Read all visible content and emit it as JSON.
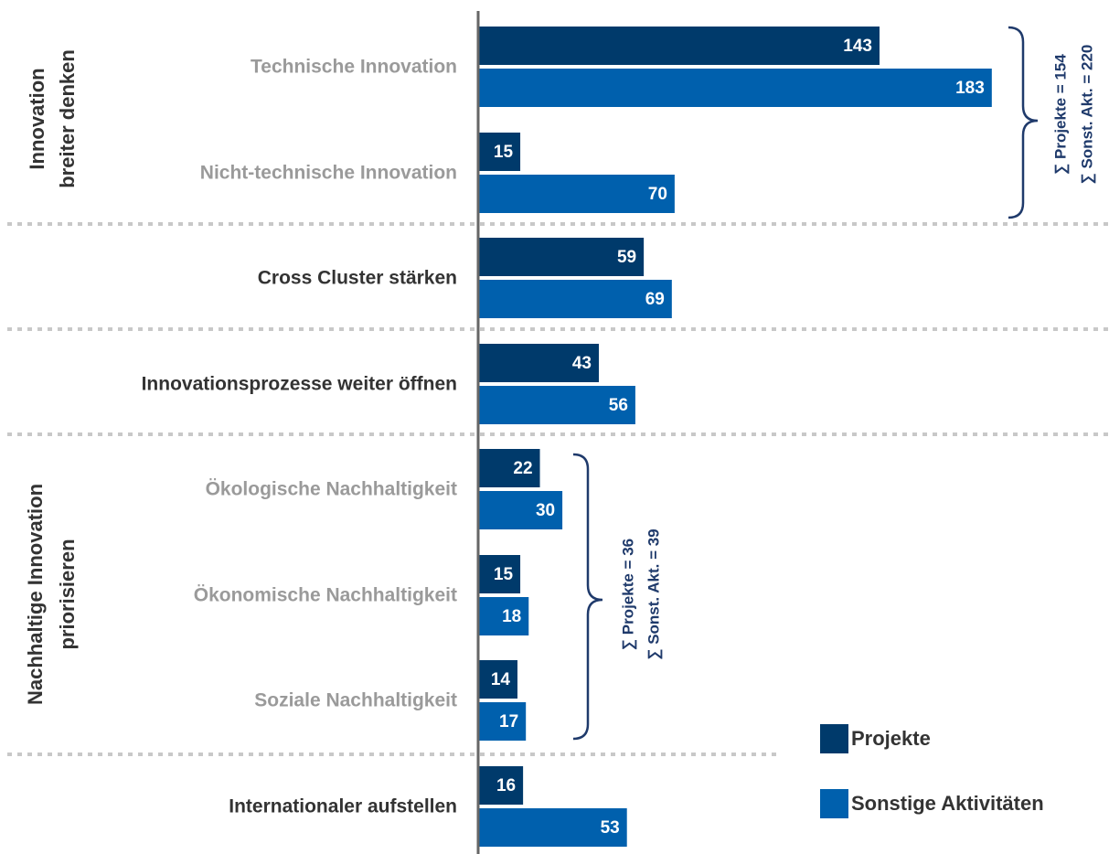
{
  "chart_data": {
    "type": "bar",
    "categories": [
      "Technische Innovation",
      "Nicht-technische Innovation",
      "Cross Cluster stärken",
      "Innovationsprozesse weiter öffnen",
      "Ökologische Nachhaltigkeit",
      "Ökonomische Nachhaltigkeit",
      "Soziale Nachhaltigkeit",
      "Internationaler aufstellen"
    ],
    "series": [
      {
        "name": "Projekte",
        "color": "#003a6b",
        "values": [
          143,
          15,
          59,
          43,
          22,
          15,
          14,
          16
        ]
      },
      {
        "name": "Sonstige Aktivitäten",
        "color": "#0060ad",
        "values": [
          183,
          70,
          69,
          56,
          30,
          18,
          17,
          53
        ]
      }
    ],
    "groups": [
      {
        "label": [
          "Innovation",
          "breiter denken"
        ]
      },
      {
        "label": [
          "Nachhaltige Innovation",
          "priorisieren"
        ]
      }
    ],
    "annotations": [
      {
        "lines": [
          "∑ Projekte = 154",
          "∑ Sonst. Akt. = 220"
        ]
      },
      {
        "lines": [
          "∑ Projekte = 36",
          "∑ Sonst. Akt. = 39"
        ]
      }
    ]
  }
}
